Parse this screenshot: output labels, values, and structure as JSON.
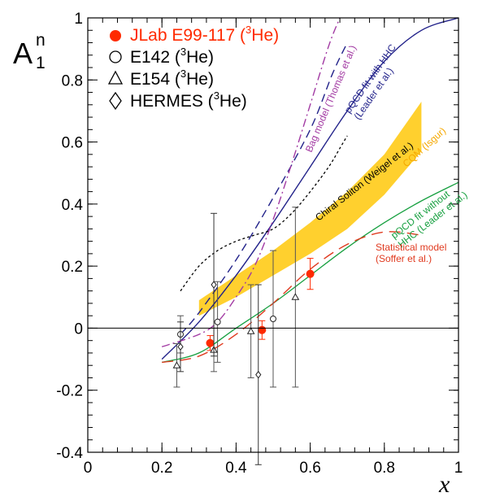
{
  "chart_data": {
    "type": "scatter",
    "xlabel": "x",
    "ylabel": {
      "main": "A",
      "sup": "n",
      "sub": "1"
    },
    "xlim": [
      0,
      1
    ],
    "ylim": [
      -0.4,
      1
    ],
    "x_ticks": [
      "0",
      "0.2",
      "0.4",
      "0.6",
      "0.8",
      "1"
    ],
    "x_tick_values": [
      0,
      0.2,
      0.4,
      0.6,
      0.8,
      1
    ],
    "y_ticks": [
      "-0.4",
      "-0.2",
      "0",
      "0.2",
      "0.4",
      "0.6",
      "0.8",
      "1"
    ],
    "y_tick_values": [
      -0.4,
      -0.2,
      0,
      0.2,
      0.4,
      0.6,
      0.8,
      1
    ],
    "legend_position": "top-left",
    "legend": [
      {
        "key": "jlab",
        "marker": "filled-circle",
        "color": "#ff2a00",
        "label": "JLab E99-117 (",
        "sup": "3",
        "label2": "He)"
      },
      {
        "key": "e142",
        "marker": "open-circle",
        "color": "#000000",
        "label": "E142 (",
        "sup": "3",
        "label2": "He)"
      },
      {
        "key": "e154",
        "marker": "open-triangle",
        "color": "#000000",
        "label": "E154 (",
        "sup": "3",
        "label2": "He)"
      },
      {
        "key": "hermes",
        "marker": "open-diamond",
        "color": "#000000",
        "label": "HERMES (",
        "sup": "3",
        "label2": "He)"
      }
    ],
    "data_series": [
      {
        "key": "jlab",
        "marker": "filled-circle",
        "color": "#ff2a00",
        "points": [
          {
            "x": 0.33,
            "y": -0.048,
            "err": 0.024
          },
          {
            "x": 0.47,
            "y": -0.006,
            "err": 0.03
          },
          {
            "x": 0.6,
            "y": 0.175,
            "err": 0.05
          }
        ]
      },
      {
        "key": "e142",
        "marker": "open-circle",
        "color": "#555555",
        "points": [
          {
            "x": 0.25,
            "y": -0.02,
            "err": 0.06
          },
          {
            "x": 0.35,
            "y": 0.02,
            "err": 0.13
          },
          {
            "x": 0.5,
            "y": 0.03,
            "err": 0.22
          }
        ]
      },
      {
        "key": "e154",
        "marker": "open-triangle",
        "color": "#555555",
        "points": [
          {
            "x": 0.24,
            "y": -0.12,
            "err": 0.07
          },
          {
            "x": 0.34,
            "y": -0.07,
            "err": 0.07
          },
          {
            "x": 0.44,
            "y": -0.01,
            "err": 0.15
          },
          {
            "x": 0.56,
            "y": 0.1,
            "err": 0.29
          }
        ]
      },
      {
        "key": "hermes",
        "marker": "open-diamond",
        "color": "#333333",
        "points": [
          {
            "x": 0.25,
            "y": -0.06,
            "err": 0.08
          },
          {
            "x": 0.34,
            "y": 0.14,
            "err": 0.23
          },
          {
            "x": 0.46,
            "y": -0.15,
            "err": 0.29
          }
        ]
      }
    ],
    "curves": [
      {
        "key": "pqcd-hhc",
        "color": "#22228a",
        "dash": "",
        "width": 1.4,
        "label_lines": [
          "pQCD fit  with HHC",
          "(Leader et al.)"
        ],
        "label_color": "#22228a",
        "points": [
          [
            0.2,
            -0.1
          ],
          [
            0.3,
            0.02
          ],
          [
            0.4,
            0.17
          ],
          [
            0.5,
            0.34
          ],
          [
            0.6,
            0.52
          ],
          [
            0.7,
            0.7
          ],
          [
            0.8,
            0.86
          ],
          [
            0.9,
            0.96
          ],
          [
            1.0,
            1.0
          ]
        ]
      },
      {
        "key": "pqcd-hhc-dashed",
        "color": "#22228a",
        "dash": "10 6",
        "width": 1.4,
        "points": [
          [
            0.25,
            -0.02
          ],
          [
            0.3,
            0.05
          ],
          [
            0.4,
            0.22
          ],
          [
            0.5,
            0.42
          ],
          [
            0.6,
            0.64
          ],
          [
            0.66,
            0.82
          ],
          [
            0.7,
            0.92
          ]
        ]
      },
      {
        "key": "bag-model",
        "color": "#a23aa3",
        "dash": "10 4 2 4",
        "width": 1.4,
        "label_lines": [
          "Bag model (Thomas et al.)"
        ],
        "label_color": "#a23aa3",
        "points": [
          [
            0.2,
            -0.06
          ],
          [
            0.3,
            -0.02
          ],
          [
            0.35,
            0.02
          ],
          [
            0.4,
            0.1
          ],
          [
            0.45,
            0.2
          ],
          [
            0.5,
            0.35
          ],
          [
            0.55,
            0.53
          ],
          [
            0.6,
            0.72
          ],
          [
            0.65,
            0.91
          ],
          [
            0.68,
            1.0
          ]
        ]
      },
      {
        "key": "chiral-soliton",
        "color": "#000000",
        "dash": "3 3",
        "width": 1.3,
        "label_lines": [
          "Chiral Soliton (Weigel et al.)"
        ],
        "label_color": "#000000",
        "points": [
          [
            0.25,
            0.12
          ],
          [
            0.3,
            0.2
          ],
          [
            0.35,
            0.25
          ],
          [
            0.4,
            0.28
          ],
          [
            0.45,
            0.3
          ],
          [
            0.5,
            0.32
          ],
          [
            0.55,
            0.37
          ],
          [
            0.6,
            0.44
          ],
          [
            0.65,
            0.52
          ],
          [
            0.68,
            0.58
          ],
          [
            0.7,
            0.62
          ]
        ]
      },
      {
        "key": "pqcd-no-hhc",
        "color": "#17a040",
        "dash": "",
        "width": 1.3,
        "label_lines": [
          "pQCD fit without",
          "HHC (Leader et al.)"
        ],
        "label_color": "#17a040",
        "points": [
          [
            0.2,
            -0.11
          ],
          [
            0.3,
            -0.08
          ],
          [
            0.4,
            0.0
          ],
          [
            0.5,
            0.08
          ],
          [
            0.6,
            0.17
          ],
          [
            0.7,
            0.26
          ],
          [
            0.8,
            0.34
          ],
          [
            0.9,
            0.41
          ],
          [
            1.0,
            0.47
          ]
        ]
      },
      {
        "key": "statistical",
        "color": "#e03a1f",
        "dash": "14 8",
        "width": 1.4,
        "label_lines": [
          "Statistical model",
          "(Soffer et al.)"
        ],
        "label_color": "#e03a1f",
        "points": [
          [
            0.2,
            -0.11
          ],
          [
            0.3,
            -0.09
          ],
          [
            0.4,
            -0.02
          ],
          [
            0.5,
            0.08
          ],
          [
            0.6,
            0.19
          ],
          [
            0.7,
            0.27
          ],
          [
            0.8,
            0.31
          ],
          [
            0.9,
            0.3
          ]
        ]
      }
    ],
    "band": {
      "key": "cqm",
      "color": "#ffd02e",
      "label_lines": [
        "CQM (Isgur)"
      ],
      "label_color": "#f5a800",
      "upper": [
        [
          0.3,
          0.09
        ],
        [
          0.4,
          0.17
        ],
        [
          0.5,
          0.25
        ],
        [
          0.6,
          0.34
        ],
        [
          0.7,
          0.44
        ],
        [
          0.8,
          0.56
        ],
        [
          0.9,
          0.73
        ]
      ],
      "lower": [
        [
          0.3,
          0.04
        ],
        [
          0.4,
          0.1
        ],
        [
          0.5,
          0.17
        ],
        [
          0.6,
          0.24
        ],
        [
          0.7,
          0.32
        ],
        [
          0.8,
          0.43
        ],
        [
          0.9,
          0.57
        ]
      ]
    }
  }
}
